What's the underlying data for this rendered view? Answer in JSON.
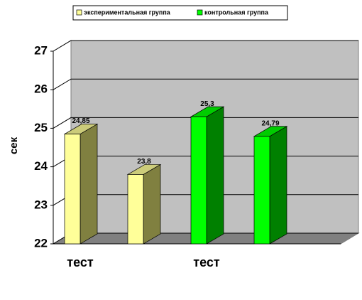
{
  "chart_data": {
    "type": "bar3d",
    "y_label": "сек",
    "categories": [
      "тест",
      null,
      "тест",
      null
    ],
    "series": [
      {
        "name": "экспериментальная группа",
        "color": "#ffff99",
        "values": [
          24.85,
          23.8,
          null,
          null
        ],
        "value_labels": [
          "24,85",
          "23,8",
          null,
          null
        ]
      },
      {
        "name": "контрольная группа",
        "color": "#00ff00",
        "values": [
          null,
          null,
          25.3,
          24.79
        ],
        "value_labels": [
          null,
          null,
          "25,3",
          "24,79"
        ]
      }
    ],
    "ylim": [
      22,
      27
    ],
    "yticks": [
      22,
      23,
      24,
      25,
      26,
      27
    ],
    "grid": true
  }
}
